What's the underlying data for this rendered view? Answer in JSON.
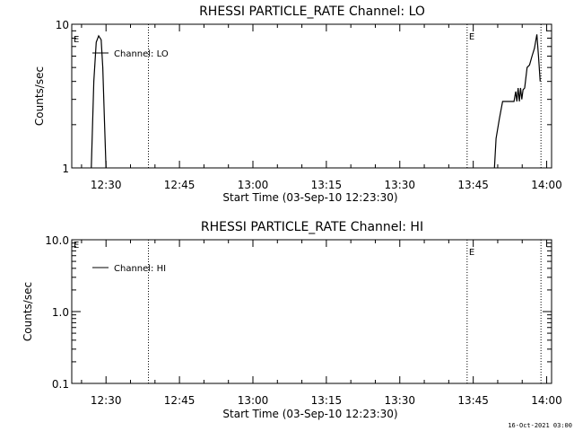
{
  "footer": "16-Oct-2021 03:00",
  "chart_data": [
    {
      "type": "line",
      "title": "RHESSI PARTICLE_RATE Channel: LO",
      "xlabel": "Start Time (03-Sep-10 12:23:30)",
      "ylabel": "Counts/sec",
      "yscale": "log",
      "ylim": [
        1,
        10
      ],
      "yticks": [
        1,
        10
      ],
      "ytick_labels": [
        "1",
        "10"
      ],
      "xlim_minutes": [
        12.383,
        13.617
      ],
      "xtick_labels": [
        "12:30",
        "12:45",
        "13:00",
        "13:15",
        "13:30",
        "13:45",
        "14:00"
      ],
      "legend": {
        "label": "Channel: LO",
        "placement": "top-left"
      },
      "grid": false,
      "vertical_markers": [
        {
          "time": "12:38:40",
          "label": ""
        },
        {
          "time": "13:43:45",
          "label": "E"
        },
        {
          "time": "13:58:50",
          "label": ""
        }
      ],
      "edge_markers": [
        {
          "label": "E",
          "side": "left"
        }
      ],
      "series": [
        {
          "name": "Channel: LO",
          "segments": [
            [
              [
                "12:27:00",
                1.0
              ],
              [
                "12:27:30",
                4.0
              ],
              [
                "12:28:00",
                7.5
              ],
              [
                "12:28:30",
                8.3
              ],
              [
                "12:29:00",
                7.8
              ],
              [
                "12:29:20",
                5.0
              ],
              [
                "12:29:40",
                2.2
              ],
              [
                "12:30:00",
                1.0
              ]
            ],
            [
              [
                "13:49:20",
                1.0
              ],
              [
                "13:49:40",
                1.6
              ],
              [
                "13:50:20",
                2.2
              ],
              [
                "13:51:00",
                2.9
              ],
              [
                "13:53:20",
                2.9
              ],
              [
                "13:53:40",
                3.4
              ],
              [
                "13:53:55",
                2.9
              ],
              [
                "13:54:10",
                3.6
              ],
              [
                "13:54:25",
                2.9
              ],
              [
                "13:54:40",
                3.6
              ],
              [
                "13:54:55",
                3.0
              ],
              [
                "13:55:10",
                3.5
              ],
              [
                "13:55:30",
                3.6
              ],
              [
                "13:56:00",
                5.0
              ],
              [
                "13:56:30",
                5.2
              ],
              [
                "13:57:00",
                6.0
              ],
              [
                "13:57:30",
                6.8
              ],
              [
                "13:58:00",
                8.5
              ],
              [
                "13:58:20",
                6.0
              ],
              [
                "13:58:40",
                4.0
              ]
            ]
          ]
        }
      ]
    },
    {
      "type": "line",
      "title": "RHESSI PARTICLE_RATE Channel: HI",
      "xlabel": "Start Time (03-Sep-10 12:23:30)",
      "ylabel": "Counts/sec",
      "yscale": "log",
      "ylim": [
        0.1,
        10
      ],
      "yticks": [
        0.1,
        1,
        10
      ],
      "ytick_labels": [
        "0.1",
        "1.0",
        "10.0"
      ],
      "xlim_minutes": [
        12.383,
        13.617
      ],
      "xtick_labels": [
        "12:30",
        "12:45",
        "13:00",
        "13:15",
        "13:30",
        "13:45",
        "14:00"
      ],
      "legend": {
        "label": "Channel: HI",
        "placement": "top-left"
      },
      "grid": false,
      "vertical_markers": [
        {
          "time": "12:38:40",
          "label": ""
        },
        {
          "time": "13:43:45",
          "label": "E"
        },
        {
          "time": "13:58:50",
          "label": ""
        }
      ],
      "edge_markers": [
        {
          "label": "E",
          "side": "left"
        }
      ],
      "series": [
        {
          "name": "Channel: HI",
          "segments": []
        }
      ]
    }
  ]
}
